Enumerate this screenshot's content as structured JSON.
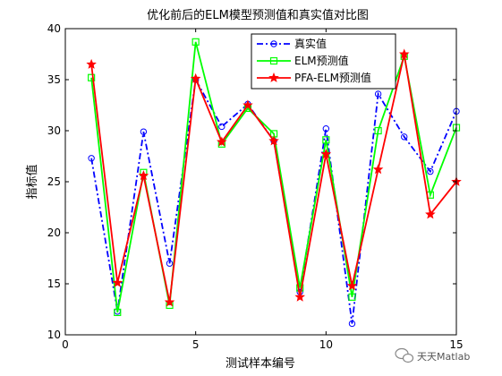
{
  "chart_data": {
    "type": "line",
    "title": "优化前后的ELM模型预测值和真实值对比图",
    "xlabel": "测试样本编号",
    "ylabel": "指标值",
    "xlim": [
      0,
      15
    ],
    "ylim": [
      10,
      40
    ],
    "xticks": [
      0,
      5,
      10,
      15
    ],
    "yticks": [
      10,
      15,
      20,
      25,
      30,
      35,
      40
    ],
    "grid": false,
    "legend_position": "top-right",
    "x": [
      1,
      2,
      3,
      4,
      5,
      6,
      7,
      8,
      9,
      10,
      11,
      12,
      13,
      14,
      15
    ],
    "series": [
      {
        "name": "真实值",
        "color": "#0000ff",
        "line_style": "dash-dot",
        "marker": "circle",
        "values": [
          27.3,
          12.3,
          29.9,
          17.0,
          35.0,
          30.4,
          32.6,
          29.0,
          14.2,
          30.2,
          11.1,
          33.6,
          29.4,
          26.0,
          31.9
        ]
      },
      {
        "name": "ELM预测值",
        "color": "#00ff00",
        "line_style": "solid",
        "marker": "square",
        "values": [
          35.2,
          12.2,
          25.9,
          12.9,
          38.7,
          28.7,
          32.2,
          29.7,
          14.6,
          29.1,
          13.7,
          30.0,
          37.3,
          23.7,
          30.3
        ]
      },
      {
        "name": "PFA-ELM预测值",
        "color": "#ff0000",
        "line_style": "solid",
        "marker": "star",
        "values": [
          36.5,
          15.1,
          25.6,
          13.2,
          35.1,
          28.9,
          32.5,
          29.0,
          13.7,
          27.7,
          14.8,
          26.2,
          37.5,
          21.8,
          25.0
        ]
      }
    ]
  },
  "watermark": {
    "text": "天天Matlab",
    "icon": "wechat-icon"
  }
}
